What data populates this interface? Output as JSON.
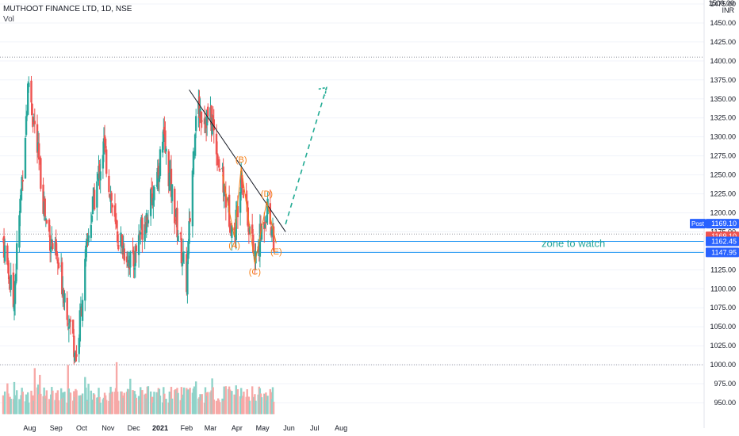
{
  "header": {
    "title": "MUTHOOT FINANCE LTD, 1D, NSE",
    "vol_label": "Vol"
  },
  "currency": {
    "top_value": "1500.00",
    "code": "INR"
  },
  "colors": {
    "up": "#26a69a",
    "down": "#ef5350",
    "vol_up": "#8fd3c9",
    "vol_down": "#f7a9a7",
    "pattern": "#f57f17",
    "trendline": "#131722",
    "zone_line": "#2196f3",
    "zone_text": "#26a69a",
    "arrow": "#22ab94"
  },
  "chart_data": {
    "type": "candlestick",
    "title": "MUTHOOT FINANCE LTD, 1D, NSE",
    "ylabel": "INR",
    "ylim": [
      935,
      1500
    ],
    "y_ticks": [
      950,
      975,
      1000,
      1025,
      1050,
      1075,
      1100,
      1125,
      1150,
      1175,
      1200,
      1225,
      1250,
      1275,
      1300,
      1325,
      1350,
      1375,
      1400,
      1425,
      1450,
      1475
    ],
    "x_tick_labels": [
      "Aug",
      "Sep",
      "Oct",
      "Nov",
      "Dec",
      "2021",
      "Feb",
      "Mar",
      "Apr",
      "May",
      "Jun",
      "Jul",
      "Aug"
    ],
    "price_labels": [
      {
        "name": "Post",
        "value": 1169.1
      },
      {
        "name": "last",
        "value": 1169.1
      },
      {
        "name": "zone-upper",
        "value": 1162.45
      },
      {
        "name": "zone-lower",
        "value": 1147.95
      }
    ],
    "dotted_levels": [
      1405,
      1000,
      1172
    ],
    "pattern_points": [
      {
        "label": "(A)",
        "date": "2021-03-29",
        "price": 1168
      },
      {
        "label": "(B)",
        "date": "2021-04-06",
        "price": 1260
      },
      {
        "label": "(C)",
        "date": "2021-04-22",
        "price": 1133
      },
      {
        "label": "(D)",
        "date": "2021-05-06",
        "price": 1215
      },
      {
        "label": "(E)",
        "date": "2021-05-17",
        "price": 1160
      }
    ],
    "annotations": [
      {
        "text": "zone to watch"
      }
    ],
    "trendline": [
      {
        "date": "2021-02-04",
        "price": 1362
      },
      {
        "date": "2021-05-28",
        "price": 1175
      }
    ],
    "projection": [
      {
        "date": "2021-05-28",
        "price": 1185
      },
      {
        "date": "2021-07-15",
        "price": 1365
      }
    ],
    "candles_summary": {
      "start": "2020-07-01",
      "end": "2021-05-14",
      "key_prices": [
        {
          "date": "2020-07-01",
          "close": 1165
        },
        {
          "date": "2020-07-13",
          "close": 1080
        },
        {
          "date": "2020-07-31",
          "close": 1375
        },
        {
          "date": "2020-08-20",
          "close": 1190
        },
        {
          "date": "2020-09-09",
          "close": 1105
        },
        {
          "date": "2020-09-25",
          "close": 1010
        },
        {
          "date": "2020-10-09",
          "close": 1175
        },
        {
          "date": "2020-10-27",
          "close": 1290
        },
        {
          "date": "2020-11-10",
          "close": 1175
        },
        {
          "date": "2020-11-30",
          "close": 1130
        },
        {
          "date": "2020-12-08",
          "close": 1175
        },
        {
          "date": "2020-12-22",
          "close": 1215
        },
        {
          "date": "2021-01-05",
          "close": 1295
        },
        {
          "date": "2021-01-19",
          "close": 1195
        },
        {
          "date": "2021-02-01",
          "close": 1110
        },
        {
          "date": "2021-02-12",
          "close": 1340
        },
        {
          "date": "2021-03-03",
          "close": 1320
        },
        {
          "date": "2021-03-15",
          "close": 1240
        },
        {
          "date": "2021-03-29",
          "close": 1168
        },
        {
          "date": "2021-04-06",
          "close": 1258
        },
        {
          "date": "2021-04-22",
          "close": 1133
        },
        {
          "date": "2021-05-06",
          "close": 1210
        },
        {
          "date": "2021-05-14",
          "close": 1169
        }
      ]
    }
  }
}
